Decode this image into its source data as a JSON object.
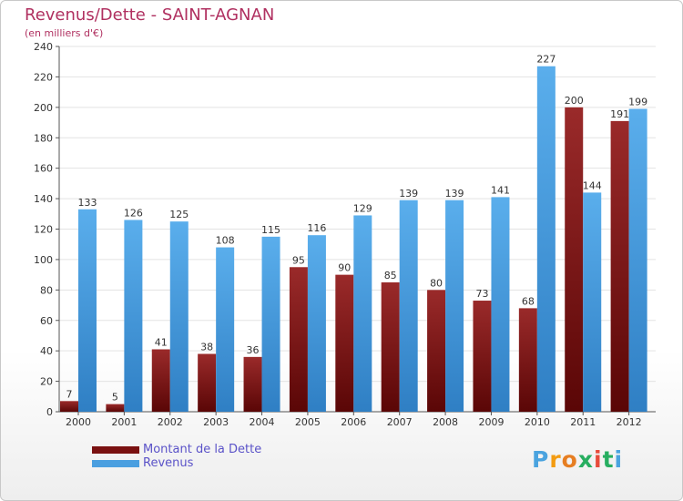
{
  "header": {
    "title": "Revenus/Dette - SAINT-AGNAN",
    "subtitle": "(en milliers d'€)"
  },
  "logo": {
    "text": "Proxiti",
    "letters": [
      "P",
      "r",
      "o",
      "x",
      "i",
      "t",
      "i"
    ]
  },
  "colors": {
    "dette": "#7a1111",
    "revenus": "#4a9fe0",
    "title": "#b03060",
    "legend_text": "#5a52c8",
    "logo": [
      "#4aa3df",
      "#f39c12",
      "#e67e22",
      "#27ae60",
      "#e74c3c",
      "#27ae60",
      "#4aa3df"
    ]
  },
  "chart_data": {
    "type": "bar",
    "title": "Revenus/Dette - SAINT-AGNAN",
    "ylabel": "(en milliers d'€)",
    "categories": [
      "2000",
      "2001",
      "2002",
      "2003",
      "2004",
      "2005",
      "2006",
      "2007",
      "2008",
      "2009",
      "2010",
      "2011",
      "2012"
    ],
    "series": [
      {
        "name": "Montant de la Dette",
        "values": [
          7,
          5,
          41,
          38,
          36,
          95,
          90,
          85,
          80,
          73,
          68,
          200,
          191
        ]
      },
      {
        "name": "Revenus",
        "values": [
          133,
          126,
          125,
          108,
          115,
          116,
          129,
          139,
          139,
          141,
          227,
          144,
          199
        ]
      }
    ],
    "ylim": [
      0,
      240
    ],
    "yticks": [
      0,
      20,
      40,
      60,
      80,
      100,
      120,
      140,
      160,
      180,
      200,
      220,
      240
    ],
    "grid": true,
    "legend": "bottom-left"
  }
}
